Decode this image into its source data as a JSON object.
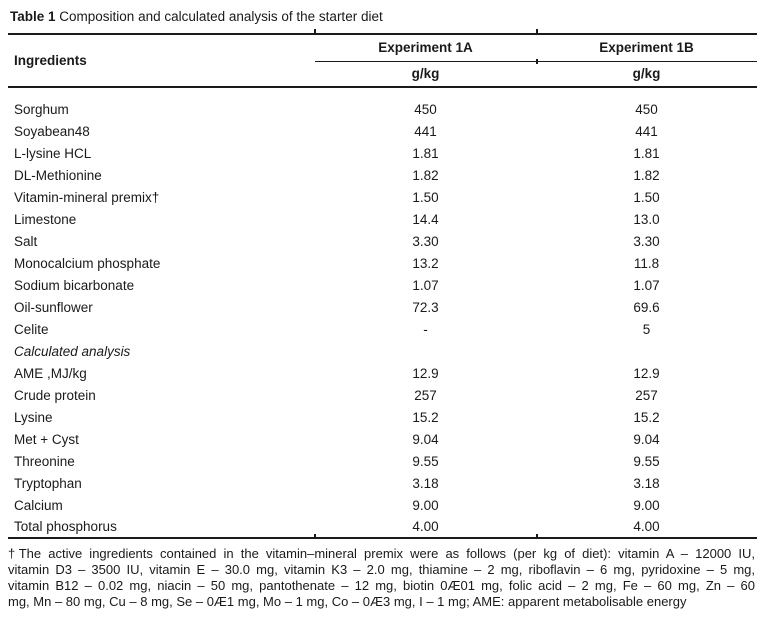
{
  "title": {
    "bold": "Table 1",
    "rest": " Composition and calculated analysis of the starter diet"
  },
  "table": {
    "header": {
      "ingredients": "Ingredients",
      "exp_a": "Experiment 1A",
      "exp_b": "Experiment 1B",
      "unit_a": "g/kg",
      "unit_b": "g/kg"
    },
    "rows": [
      {
        "name": "Sorghum",
        "a": "450",
        "b": "450"
      },
      {
        "name": "Soyabean48",
        "a": "441",
        "b": "441"
      },
      {
        "name": "L-lysine HCL",
        "a": "1.81",
        "b": "1.81"
      },
      {
        "name": "DL-Methionine",
        "a": "1.82",
        "b": "1.82"
      },
      {
        "name": "Vitamin-mineral premix†",
        "a": "1.50",
        "b": "1.50"
      },
      {
        "name": "Limestone",
        "a": "14.4",
        "b": "13.0"
      },
      {
        "name": "Salt",
        "a": "3.30",
        "b": "3.30"
      },
      {
        "name": "Monocalcium phosphate",
        "a": "13.2",
        "b": "11.8"
      },
      {
        "name": "Sodium bicarbonate",
        "a": "1.07",
        "b": "1.07"
      },
      {
        "name": "Oil-sunflower",
        "a": "72.3",
        "b": "69.6"
      },
      {
        "name": "Celite",
        "a": "-",
        "b": "5"
      },
      {
        "name": "Calculated analysis",
        "a": "",
        "b": ""
      },
      {
        "name": "AME ,MJ/kg",
        "a": "12.9",
        "b": "12.9"
      },
      {
        "name": "Crude protein",
        "a": "257",
        "b": "257"
      },
      {
        "name": "Lysine",
        "a": "15.2",
        "b": "15.2"
      },
      {
        "name": "Met + Cyst",
        "a": "9.04",
        "b": "9.04"
      },
      {
        "name": "Threonine",
        "a": "9.55",
        "b": "9.55"
      },
      {
        "name": "Tryptophan",
        "a": "3.18",
        "b": "3.18"
      },
      {
        "name": "Calcium",
        "a": "9.00",
        "b": "9.00"
      },
      {
        "name": "Total phosphorus",
        "a": "4.00",
        "b": "4.00"
      }
    ]
  },
  "footnote": {
    "lines": [
      "†The active ingredients contained in the vitamin–mineral premix were as follows (per kg of diet): vitamin A – 12000 IU,",
      "vitamin D3 – 3500 IU, vitamin E – 30.0 mg, vitamin K3 – 2.0 mg, thiamine – 2 mg, riboflavin – 6 mg, pyridoxine – 5 mg,",
      "vitamin B12 – 0.02 mg, niacin – 50 mg, pantothenate – 12 mg, biotin 0Æ01 mg, folic acid – 2 mg, Fe – 60 mg, Zn – 60",
      "mg, Mn – 80 mg, Cu – 8 mg, Se – 0Æ1 mg, Mo – 1 mg, Co – 0Æ3 mg, I – 1 mg; AME: apparent metabolisable energy"
    ]
  }
}
